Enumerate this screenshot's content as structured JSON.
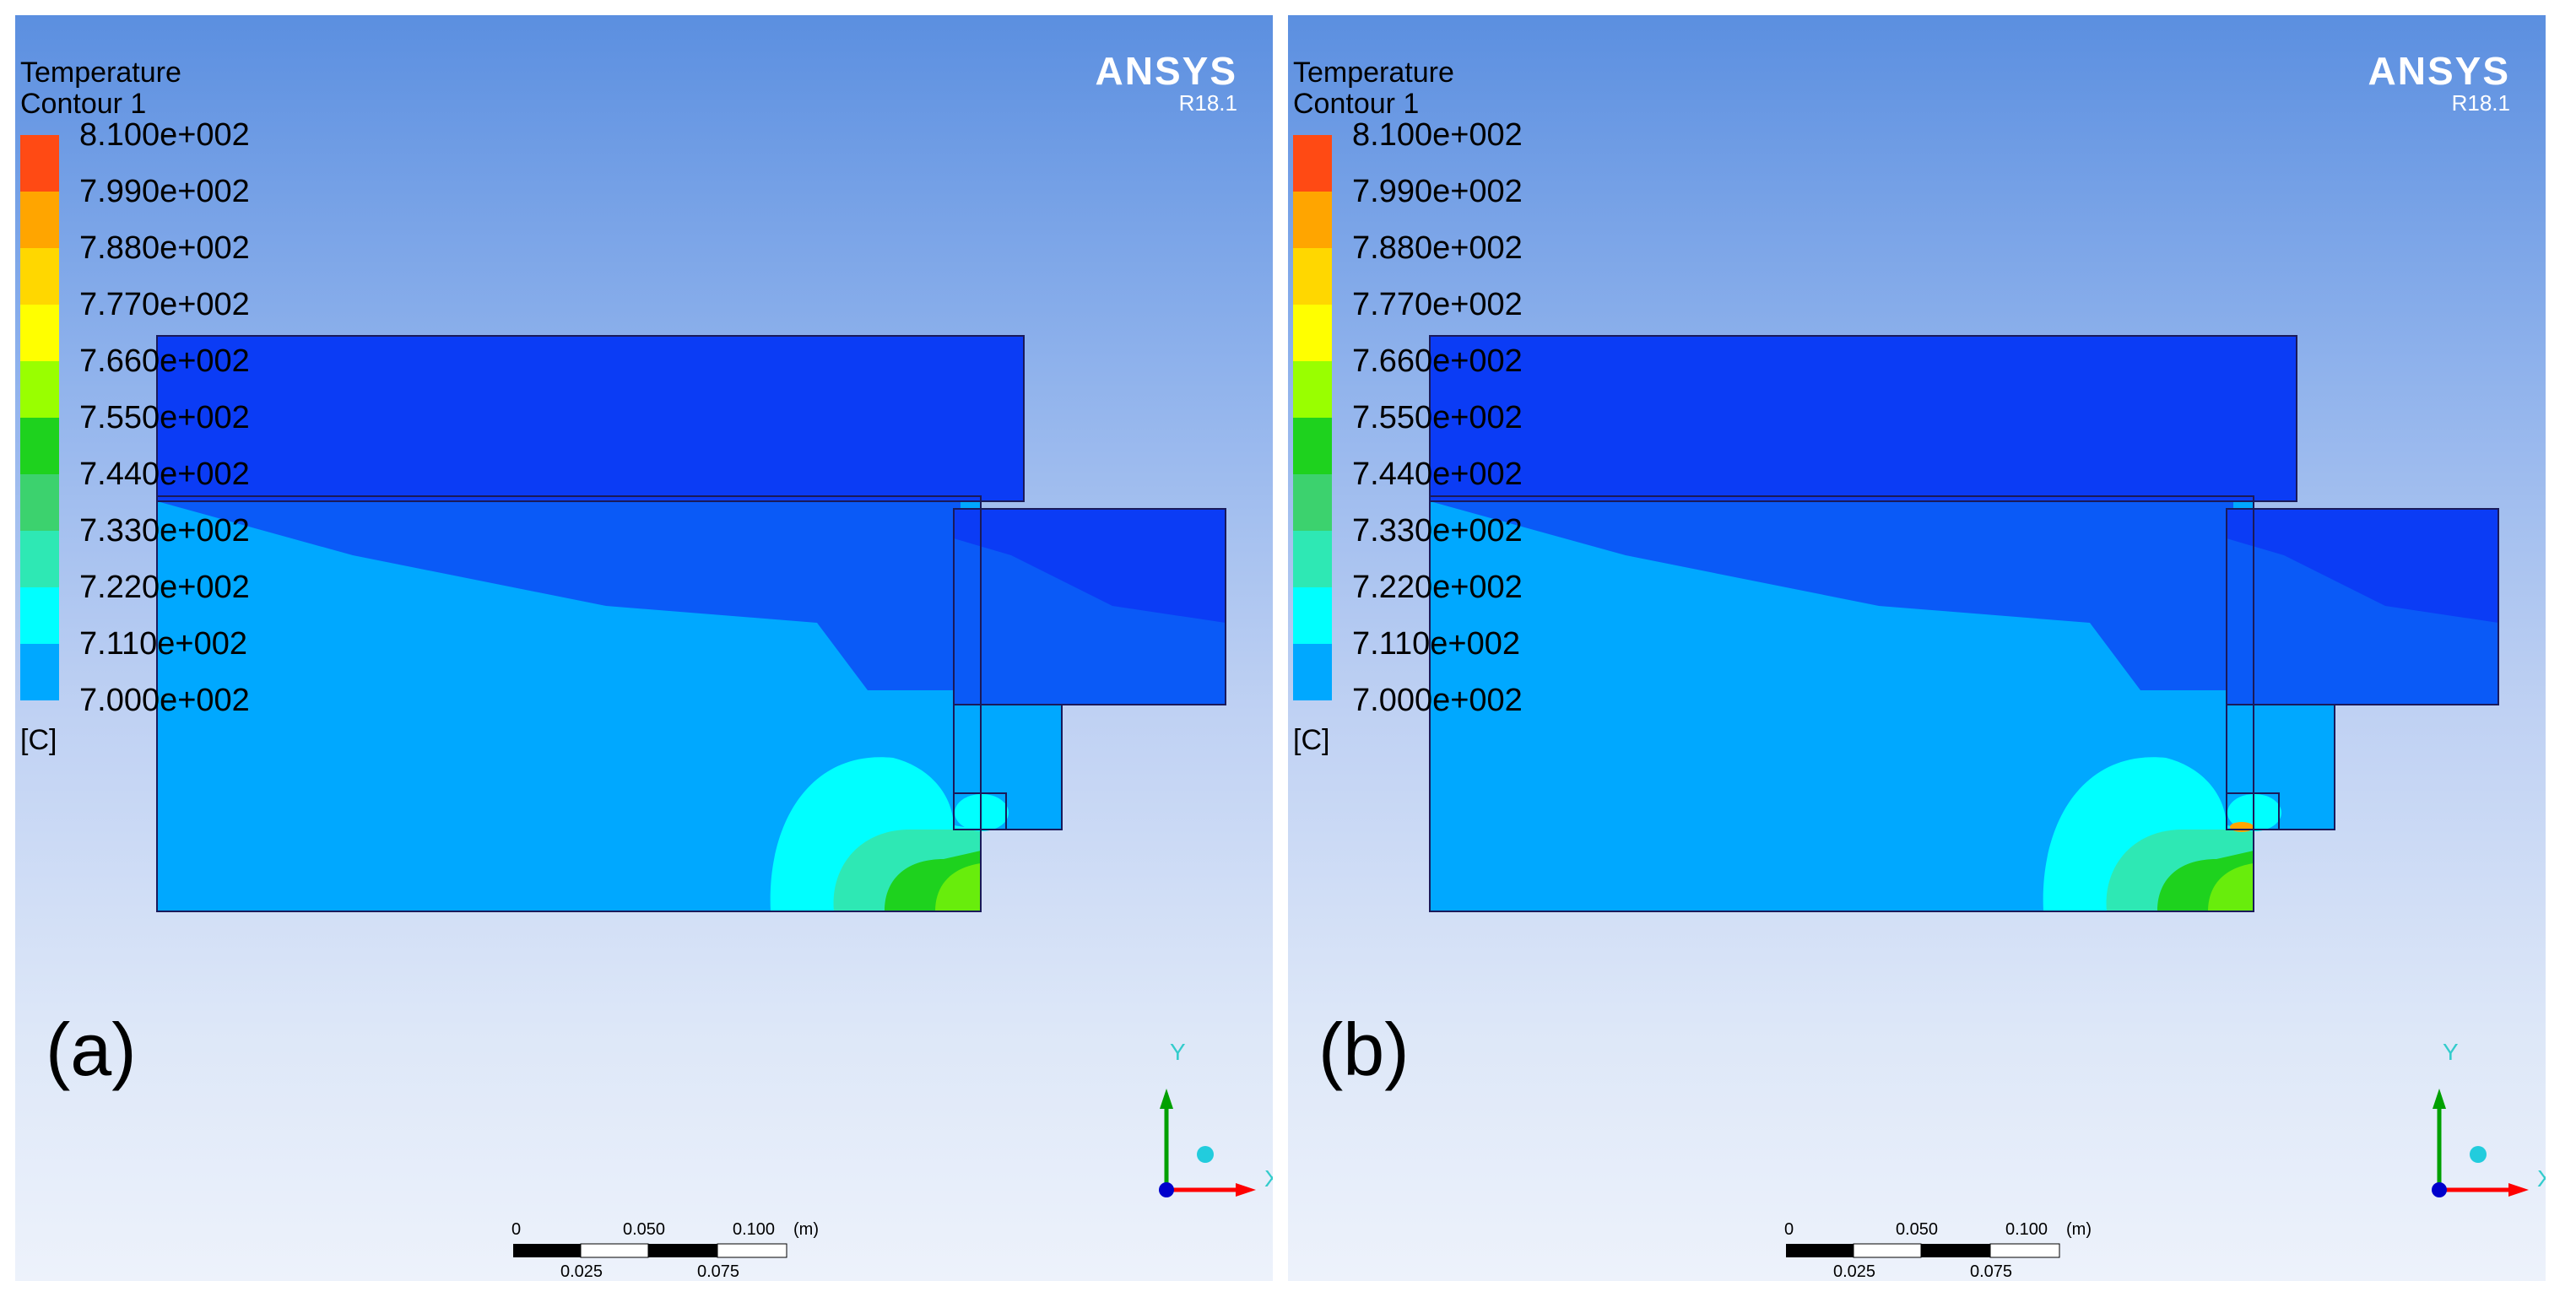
{
  "panels": [
    {
      "label": "(a)",
      "legend": {
        "title_line1": "Temperature",
        "title_line2": "Contour 1",
        "values": [
          "8.100e+002",
          "7.990e+002",
          "7.880e+002",
          "7.770e+002",
          "7.660e+002",
          "7.550e+002",
          "7.440e+002",
          "7.330e+002",
          "7.220e+002",
          "7.110e+002",
          "7.000e+002"
        ],
        "unit": "[C]"
      },
      "logo": {
        "name": "ANSYS",
        "version": "R18.1"
      },
      "scale_bar": {
        "top_labels": [
          "0",
          "0.050",
          "0.100"
        ],
        "bottom_labels": [
          "0.025",
          "0.075"
        ],
        "unit": "(m)"
      },
      "axis_labels": {
        "y": "Y",
        "x": "X"
      }
    },
    {
      "label": "(b)",
      "legend": {
        "title_line1": "Temperature",
        "title_line2": "Contour 1",
        "values": [
          "8.100e+002",
          "7.990e+002",
          "7.880e+002",
          "7.770e+002",
          "7.660e+002",
          "7.550e+002",
          "7.440e+002",
          "7.330e+002",
          "7.220e+002",
          "7.110e+002",
          "7.000e+002"
        ],
        "unit": "[C]"
      },
      "logo": {
        "name": "ANSYS",
        "version": "R18.1"
      },
      "scale_bar": {
        "top_labels": [
          "0",
          "0.050",
          "0.100"
        ],
        "bottom_labels": [
          "0.025",
          "0.075"
        ],
        "unit": "(m)"
      },
      "axis_labels": {
        "y": "Y",
        "x": "X"
      }
    }
  ],
  "colors": {
    "legend_bands_top_to_bottom": [
      "#ff4a14",
      "#ffa500",
      "#ffd700",
      "#ffff00",
      "#99ff00",
      "#1ed21e",
      "#3cd26e",
      "#2ee8b4",
      "#00ffff",
      "#00a8ff",
      "#0b3cf5"
    ],
    "contour_darkest": "#0b3cf5",
    "contour_dark": "#0a5af7",
    "contour_mid": "#00a8ff",
    "contour_cyan": "#00ffff",
    "contour_teal": "#2ee8b4",
    "contour_green": "#1ed21e",
    "contour_hot": "#ffa500",
    "axis_x": "#ff0000",
    "axis_y": "#00a000",
    "axis_z": "#0000cc",
    "axis_label": "#3cc",
    "logo": "#ffffff"
  }
}
